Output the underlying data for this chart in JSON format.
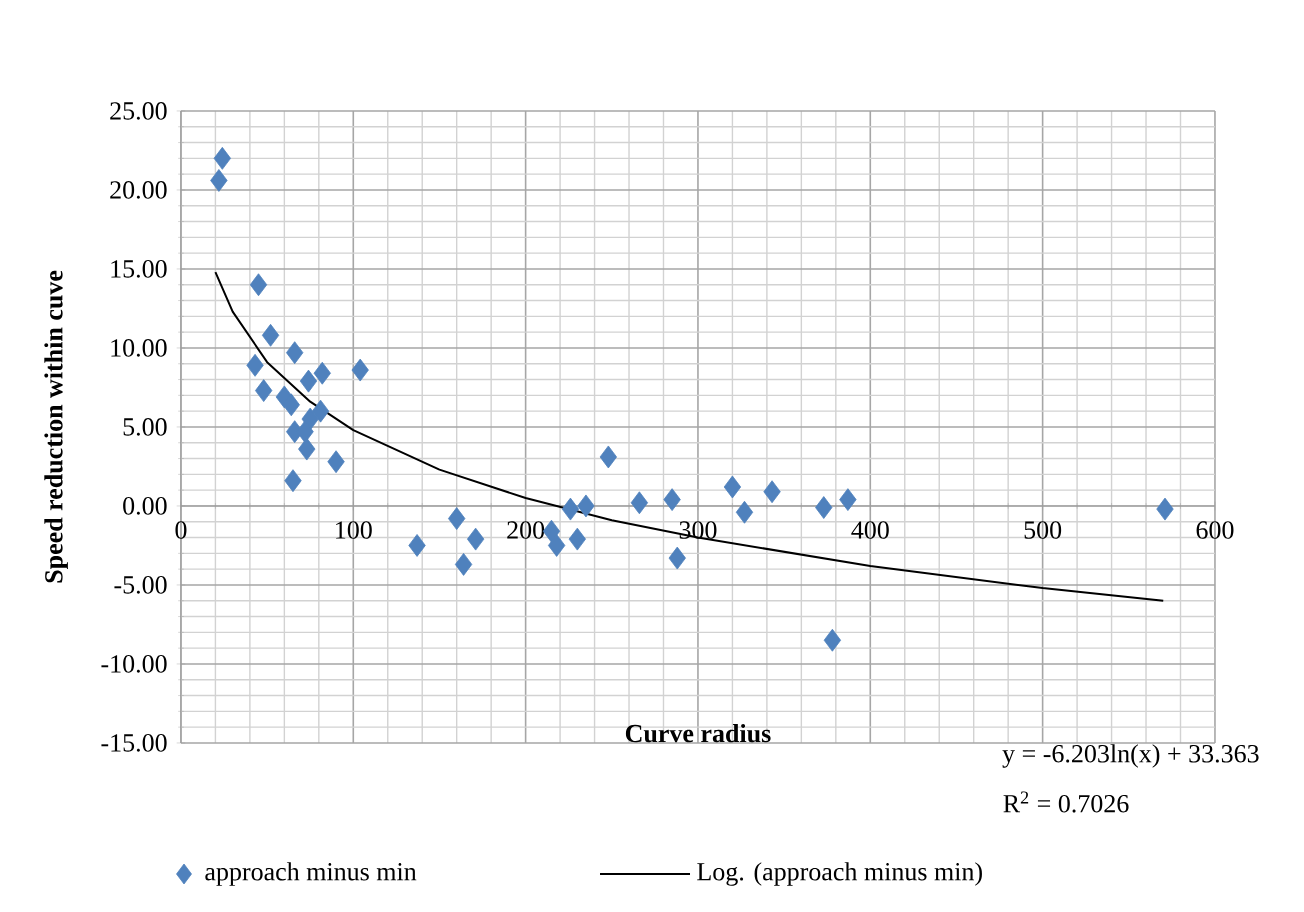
{
  "chart_data": {
    "type": "scatter",
    "xlabel": "Curve radius",
    "ylabel": "Speed reduction within cuve",
    "xlim": [
      0,
      600
    ],
    "xticks": [
      0,
      100,
      200,
      300,
      400,
      500,
      600
    ],
    "ylim": [
      -15,
      25
    ],
    "yticks": [
      {
        "value": -15,
        "label": "-15.00"
      },
      {
        "value": -10,
        "label": "-10.00"
      },
      {
        "value": -5,
        "label": "-5.00"
      },
      {
        "value": 0,
        "label": "0.00"
      },
      {
        "value": 5,
        "label": "5.00"
      },
      {
        "value": 10,
        "label": "10.00"
      },
      {
        "value": 15,
        "label": "15.00"
      },
      {
        "value": 20,
        "label": "20.00"
      },
      {
        "value": 25,
        "label": "25.00"
      }
    ],
    "grid": true,
    "legend": "bottom",
    "annotations": [
      "y = -6.203ln(x) + 33.363",
      "R$^{2}$ = 0.7026"
    ],
    "series": [
      {
        "name": "approach minus min",
        "type": "scatter",
        "color": "#4f81bd",
        "marker": "diamond",
        "x": [
          24,
          22,
          45,
          52,
          43,
          66,
          48,
          82,
          74,
          104,
          60,
          64,
          81,
          75,
          66,
          72,
          73,
          90,
          65,
          160,
          137,
          164,
          171,
          215,
          218,
          230,
          226,
          235,
          248,
          266,
          285,
          288,
          320,
          327,
          343,
          373,
          387,
          378,
          571
        ],
        "values": [
          22.0,
          20.6,
          14.0,
          10.8,
          8.9,
          9.7,
          7.3,
          8.4,
          7.9,
          8.6,
          6.9,
          6.4,
          6.0,
          5.5,
          4.7,
          4.7,
          3.6,
          2.8,
          1.6,
          -0.8,
          -2.5,
          -3.7,
          -2.1,
          -1.6,
          -2.5,
          -2.1,
          -0.2,
          0.0,
          3.1,
          0.2,
          0.4,
          -3.3,
          1.2,
          -0.4,
          0.9,
          -0.1,
          0.4,
          -8.5,
          -0.2
        ]
      },
      {
        "name": "Log. (approach minus min)",
        "type": "line",
        "color": "#000000",
        "line_style": "solid",
        "x": [
          20,
          30,
          50,
          75,
          100,
          150,
          200,
          250,
          300,
          400,
          500,
          570
        ],
        "values": [
          14.8,
          12.3,
          9.1,
          6.6,
          4.8,
          2.3,
          0.5,
          -0.9,
          -2.0,
          -3.8,
          -5.2,
          -6.0
        ]
      }
    ]
  }
}
